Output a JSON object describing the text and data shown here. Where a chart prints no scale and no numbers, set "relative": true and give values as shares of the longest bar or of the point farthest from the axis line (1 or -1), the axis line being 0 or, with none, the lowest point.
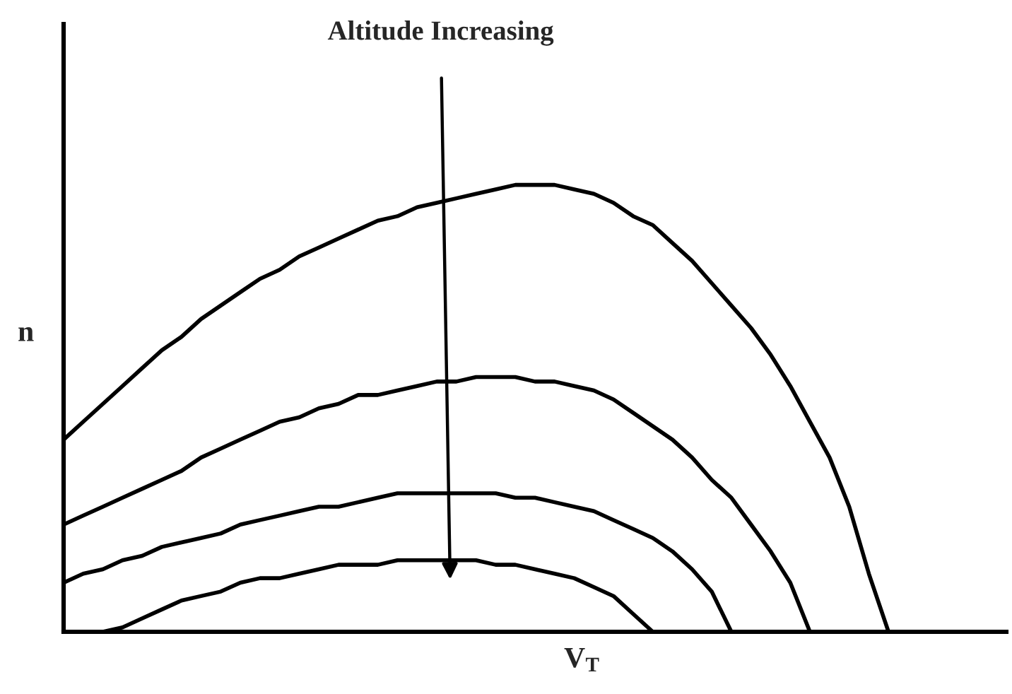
{
  "chart_data": {
    "type": "line",
    "relative": true,
    "xlabel": "V$_{T}$",
    "ylabel": "n",
    "annotations": [
      "Altitude Increasing"
    ],
    "categories": [
      null,
      null,
      null,
      null,
      null,
      null,
      null,
      null,
      null,
      null,
      null,
      null,
      null,
      null,
      null,
      null,
      null,
      null,
      null,
      null,
      null,
      null,
      null,
      null,
      null,
      null,
      null,
      null,
      null,
      null,
      null,
      null,
      null,
      null,
      null,
      null,
      null,
      null,
      null,
      null,
      null,
      null,
      null,
      null,
      null,
      null,
      null,
      null,
      null
    ],
    "series": [
      {
        "color": "#000000",
        "values": [
          0.43,
          0.47,
          0.51,
          0.55,
          0.59,
          0.63,
          0.66,
          0.7,
          0.73,
          0.76,
          0.79,
          0.81,
          0.84,
          0.86,
          0.88,
          0.9,
          0.92,
          0.93,
          0.95,
          0.96,
          0.97,
          0.98,
          0.99,
          1.0,
          1.0,
          1.0,
          0.99,
          0.98,
          0.96,
          0.93,
          0.91,
          0.87,
          0.83,
          0.78,
          0.73,
          0.68,
          0.62,
          0.55,
          0.47,
          0.39,
          0.28,
          0.13,
          0,
          null,
          null,
          null,
          null,
          null,
          null
        ]
      },
      {
        "color": "#000000",
        "values": [
          0.24,
          0.26,
          0.28,
          0.3,
          0.32,
          0.34,
          0.36,
          0.39,
          0.41,
          0.43,
          0.45,
          0.47,
          0.48,
          0.5,
          0.51,
          0.53,
          0.53,
          0.54,
          0.55,
          0.56,
          0.56,
          0.57,
          0.57,
          0.57,
          0.56,
          0.56,
          0.55,
          0.54,
          0.52,
          0.49,
          0.46,
          0.43,
          0.39,
          0.34,
          0.3,
          0.24,
          0.18,
          0.11,
          0,
          null,
          null,
          null,
          null,
          null,
          null,
          null,
          null,
          null,
          null
        ]
      },
      {
        "color": "#000000",
        "values": [
          0.11,
          0.13,
          0.14,
          0.16,
          0.17,
          0.19,
          0.2,
          0.21,
          0.22,
          0.24,
          0.25,
          0.26,
          0.27,
          0.28,
          0.28,
          0.29,
          0.3,
          0.31,
          0.31,
          0.31,
          0.31,
          0.31,
          0.31,
          0.3,
          0.3,
          0.29,
          0.28,
          0.27,
          0.25,
          0.23,
          0.21,
          0.18,
          0.14,
          0.09,
          0,
          null,
          null,
          null,
          null,
          null,
          null,
          null,
          null,
          null,
          null,
          null,
          null,
          null,
          null
        ]
      },
      {
        "color": "#000000",
        "values": [
          null,
          null,
          0,
          0.01,
          0.03,
          0.05,
          0.07,
          0.08,
          0.09,
          0.11,
          0.12,
          0.12,
          0.13,
          0.14,
          0.15,
          0.15,
          0.15,
          0.16,
          0.16,
          0.16,
          0.16,
          0.16,
          0.15,
          0.15,
          0.14,
          0.13,
          0.12,
          0.1,
          0.08,
          0.04,
          0,
          null,
          null,
          null,
          null,
          null,
          null,
          null,
          null,
          null,
          null,
          null,
          null,
          null,
          null,
          null,
          null,
          null,
          null
        ]
      }
    ]
  }
}
